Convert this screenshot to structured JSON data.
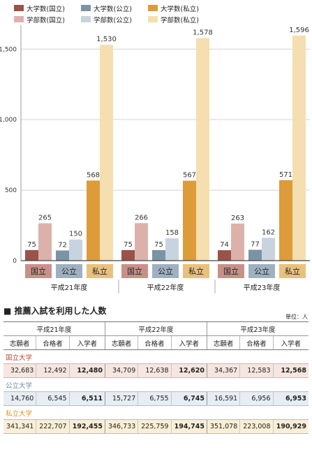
{
  "chart_data": {
    "type": "bar",
    "categories": [
      "平成21年度",
      "平成22年度",
      "平成23年度"
    ],
    "group_labels": [
      "国立",
      "公立",
      "私立"
    ],
    "group_label_colors": [
      "#c9908a",
      "#9fb1c0",
      "#e8c17d"
    ],
    "series": [
      {
        "name": "大学数(国立)",
        "values": [
          75,
          75,
          74
        ],
        "color": "#9a5348",
        "group": 0
      },
      {
        "name": "学部数(国立)",
        "values": [
          265,
          266,
          263
        ],
        "color": "#ddb1ab",
        "group": 0
      },
      {
        "name": "大学数(公立)",
        "values": [
          72,
          75,
          77
        ],
        "color": "#7c93a6",
        "group": 1
      },
      {
        "name": "学部数(公立)",
        "values": [
          150,
          158,
          162
        ],
        "color": "#c7d4df",
        "group": 1
      },
      {
        "name": "大学数(私立)",
        "values": [
          568,
          567,
          571
        ],
        "color": "#dd9b3a",
        "group": 2
      },
      {
        "name": "学部数(私立)",
        "values": [
          1530,
          1578,
          1596
        ],
        "color": "#f5deb0",
        "group": 2
      }
    ],
    "value_labels": [
      [
        "75",
        "75",
        "74"
      ],
      [
        "265",
        "266",
        "263"
      ],
      [
        "72",
        "75",
        "77"
      ],
      [
        "150",
        "158",
        "162"
      ],
      [
        "568",
        "567",
        "571"
      ],
      [
        "1,530",
        "1,578",
        "1,596"
      ]
    ],
    "yticks": [
      0,
      500,
      1000,
      1500
    ],
    "ytick_labels": [
      "0",
      "500",
      "1,000",
      "1,500"
    ],
    "ylim": [
      0,
      1650
    ],
    "legend_position": "top",
    "grid": true
  },
  "table": {
    "title": "■ 推薦入試を利用した人数",
    "unit": "単位：人",
    "years": [
      "平成21年度",
      "平成22年度",
      "平成23年度"
    ],
    "columns": [
      "志願者",
      "合格者",
      "入学者"
    ],
    "sections": [
      {
        "name": "国立大学",
        "name_color": "#c0443a",
        "bg": "#f6e6df",
        "values": [
          "32,683",
          "12,492",
          "12,480",
          "34,709",
          "12,638",
          "12,620",
          "34,367",
          "12,583",
          "12,568"
        ]
      },
      {
        "name": "公立大学",
        "name_color": "#6f8ea8",
        "bg": "#e6edf3",
        "values": [
          "14,760",
          "6,545",
          "6,511",
          "15,727",
          "6,755",
          "6,745",
          "16,591",
          "6,956",
          "6,953"
        ]
      },
      {
        "name": "私立大学",
        "name_color": "#d39a2a",
        "bg": "#faefd6",
        "values": [
          "341,341",
          "222,707",
          "192,455",
          "346,733",
          "225,759",
          "194,745",
          "351,078",
          "223,008",
          "190,929"
        ]
      }
    ]
  }
}
